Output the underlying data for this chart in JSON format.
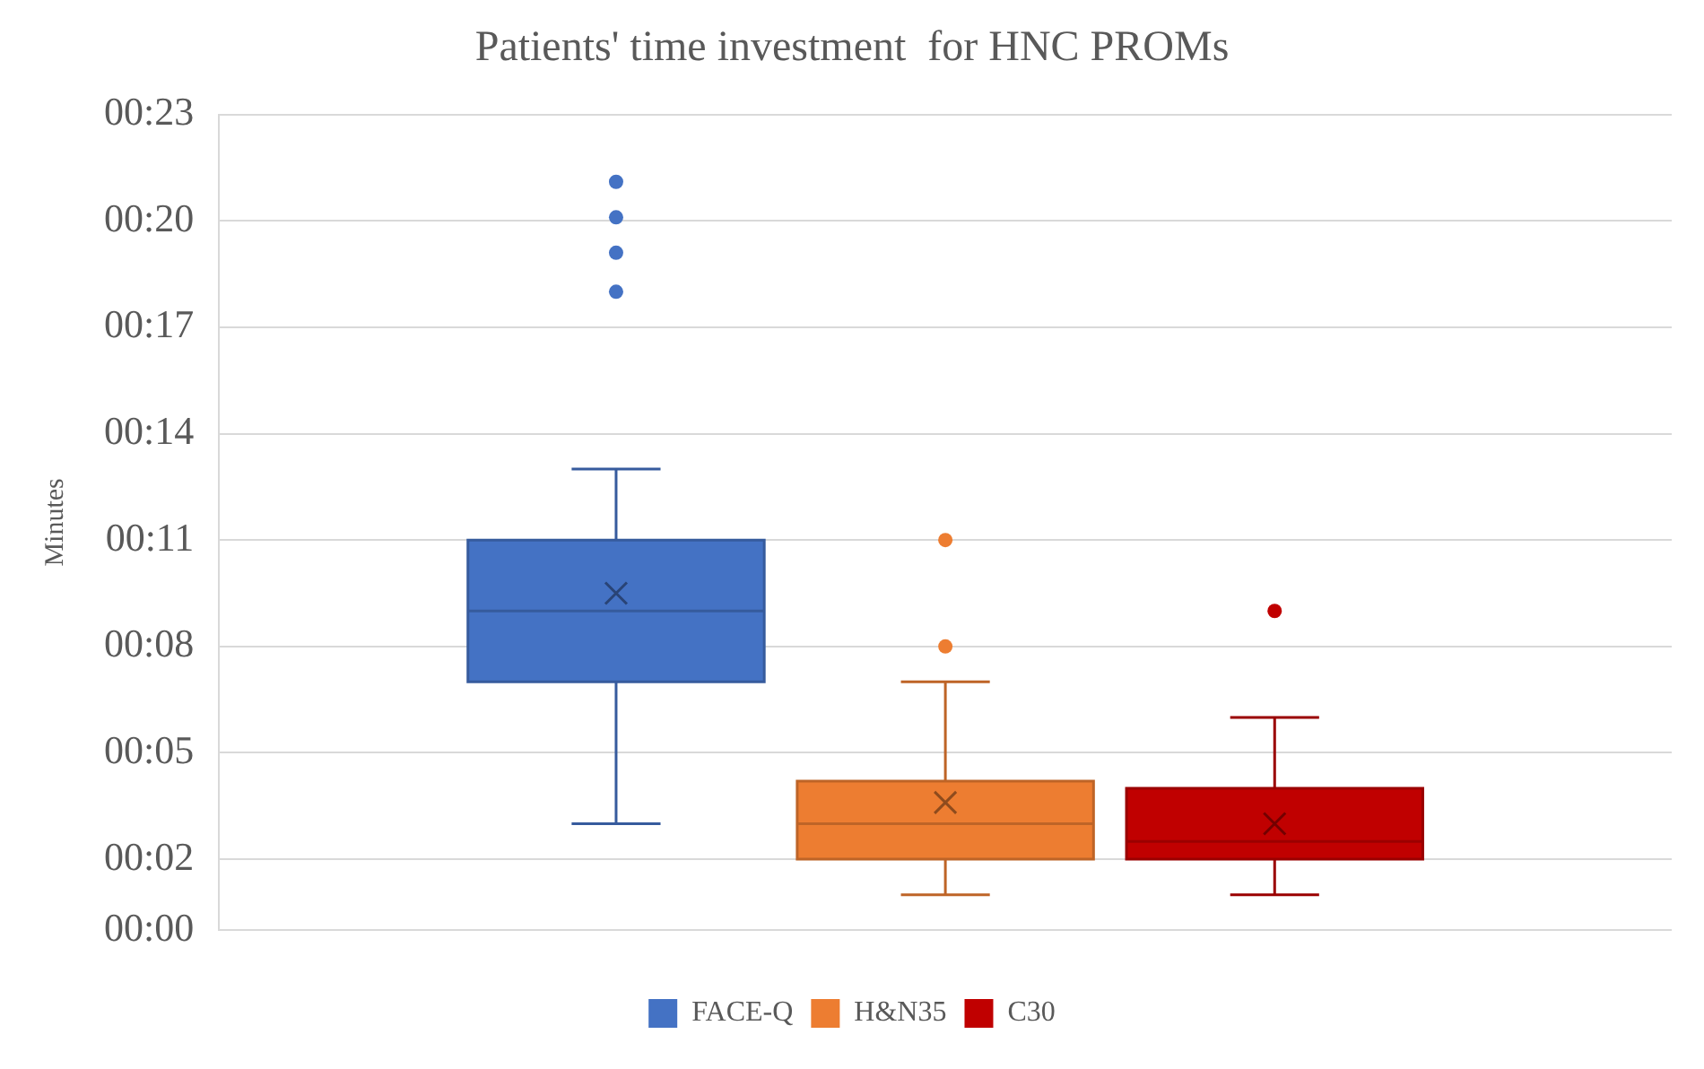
{
  "chart_data": {
    "type": "box",
    "title": "Patients' time investment  for HNC PROMs",
    "ylabel": "Minutes",
    "categories": [
      null
    ],
    "series": [
      {
        "name": "FACE-Q",
        "color": "#4472c4",
        "boxes": [
          {
            "low": 3.0,
            "q1": 7.0,
            "median": 9.0,
            "q3": 11.0,
            "high": 13.0,
            "mean": 9.5,
            "outliers": [
              18.0,
              19.1,
              20.1,
              21.1
            ]
          }
        ]
      },
      {
        "name": "H&N35",
        "color": "#ed7d31",
        "boxes": [
          {
            "low": 1.0,
            "q1": 2.0,
            "median": 3.0,
            "q3": 4.2,
            "high": 7.0,
            "mean": 3.6,
            "outliers": [
              8.0,
              11.0
            ]
          }
        ]
      },
      {
        "name": "C30",
        "color": "#c00000",
        "boxes": [
          {
            "low": 1.0,
            "q1": 2.0,
            "median": 2.5,
            "q3": 4.0,
            "high": 6.0,
            "mean": 3.0,
            "outliers": [
              9.0
            ]
          }
        ]
      }
    ],
    "ylim": [
      0,
      23
    ],
    "yticks": [
      {
        "value": 0,
        "label": "00:00"
      },
      {
        "value": 2,
        "label": "00:02"
      },
      {
        "value": 5,
        "label": "00:05"
      },
      {
        "value": 8,
        "label": "00:08"
      },
      {
        "value": 11,
        "label": "00:11"
      },
      {
        "value": 14,
        "label": "00:14"
      },
      {
        "value": 17,
        "label": "00:17"
      },
      {
        "value": 20,
        "label": "00:20"
      },
      {
        "value": 23,
        "label": "00:23"
      }
    ],
    "grid": "y",
    "legend": "bottom"
  }
}
